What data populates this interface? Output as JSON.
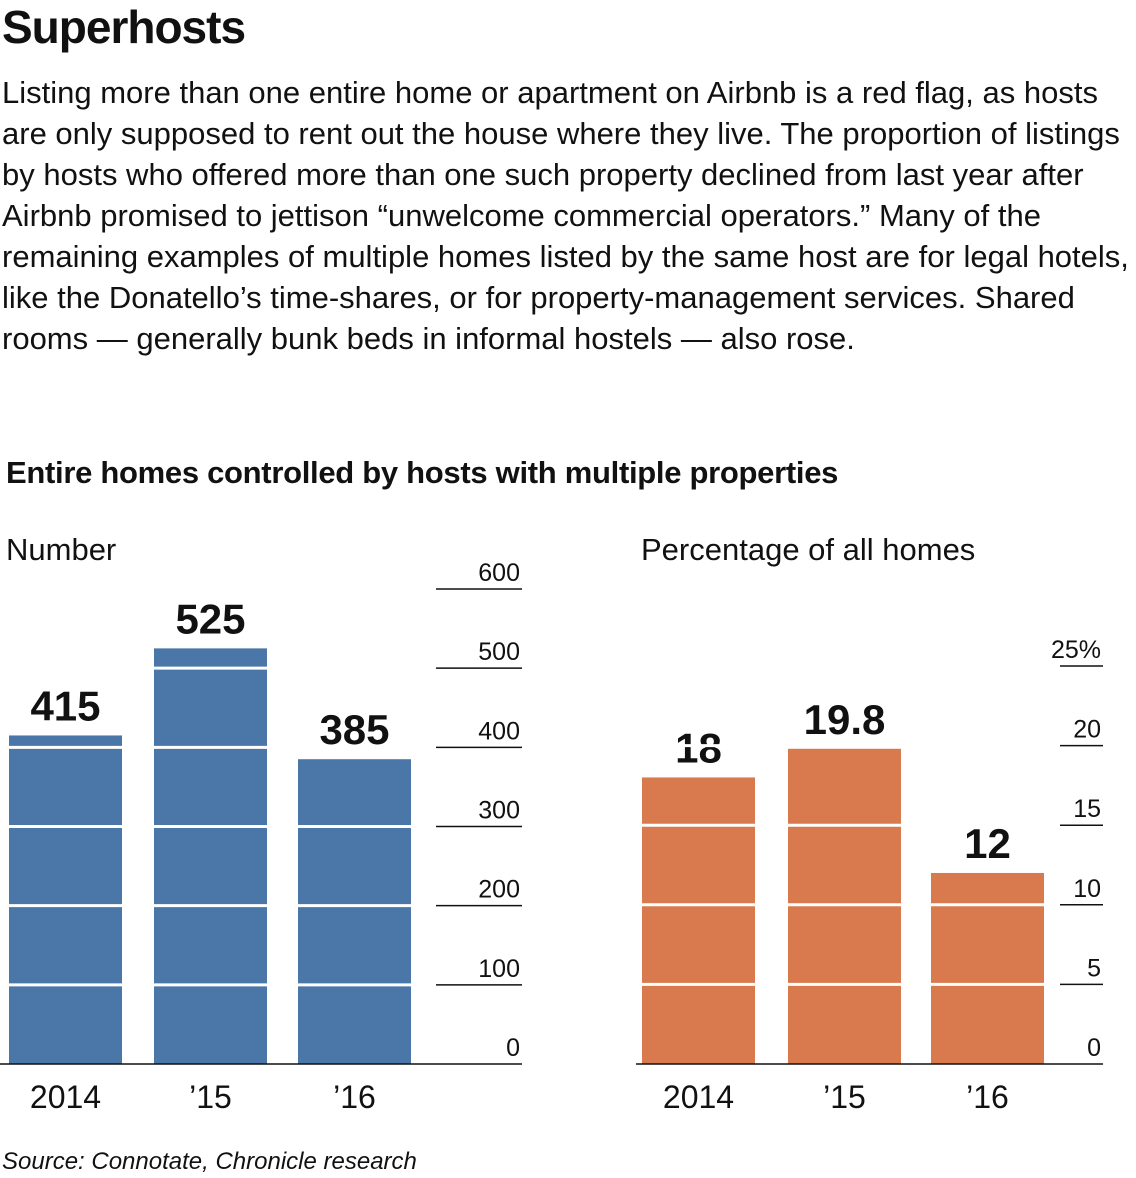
{
  "title": "Superhosts",
  "intro": "Listing more than one entire home or apartment on Airbnb is a red flag, as hosts are only supposed to rent out the house where they live. The proportion of listings by hosts who offered more than one such property declined from last year after Airbnb promised to jettison “unwelcome commercial operators.” Many of the remaining examples of multiple homes listed by the same host are for legal hotels, like the Donatello’s time-shares, or for property-management services. Shared rooms — generally bunk beds in informal hostels — also rose.",
  "subtitle": "Entire homes controlled by hosts with multiple properties",
  "source": "Source: Connotate, Chronicle research",
  "colors": {
    "number_bars": "#4a77a8",
    "percent_bars": "#d87a4e",
    "gridline": "#ffffff",
    "axis": "#111111"
  },
  "chart_data": [
    {
      "type": "bar",
      "title": "Number",
      "categories": [
        "2014",
        "’15",
        "’16"
      ],
      "values": [
        415,
        525,
        385
      ],
      "data_labels": [
        "415",
        "525",
        "385"
      ],
      "yticks": [
        "0",
        "100",
        "200",
        "300",
        "400",
        "500",
        "600"
      ],
      "ylim": [
        0,
        600
      ],
      "grid": true
    },
    {
      "type": "bar",
      "title": "Percentage of all homes",
      "categories": [
        "2014",
        "’15",
        "’16"
      ],
      "values": [
        18,
        19.8,
        12
      ],
      "data_labels": [
        "18",
        "19.8",
        "12"
      ],
      "yticks": [
        "0",
        "5",
        "10",
        "15",
        "20",
        "25%"
      ],
      "ylim": [
        0,
        25
      ],
      "grid": true
    }
  ]
}
